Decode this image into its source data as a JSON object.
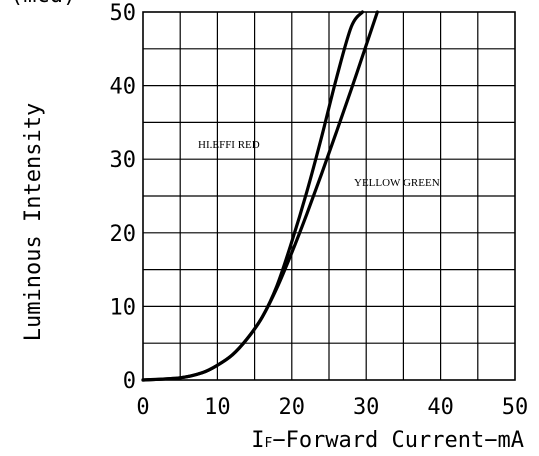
{
  "chart_data": {
    "type": "line",
    "title": "",
    "xlabel_prefix": "I",
    "xlabel_sub": "F",
    "xlabel_rest": "−Forward Current−mA",
    "ylabel": "Luminous Intensity",
    "ylabel_top_partial": "(mcd)",
    "xlim": [
      0,
      50
    ],
    "ylim": [
      0,
      50
    ],
    "xticks": [
      "0",
      "10",
      "20",
      "30",
      "40",
      "50"
    ],
    "yticks": [
      "0",
      "10",
      "20",
      "30",
      "40",
      "50"
    ],
    "grid": true,
    "annotations": [
      "HI.EFFI RED",
      "YELLOW GREEN"
    ],
    "series": [
      {
        "name": "HI.EFFI RED",
        "x": [
          0,
          5,
          8,
          10,
          12,
          14,
          16,
          18,
          20,
          22,
          24,
          26,
          28,
          29.5
        ],
        "y": [
          0,
          0.3,
          1.0,
          2.0,
          3.4,
          5.6,
          8.5,
          12.8,
          18.8,
          25.5,
          33.0,
          41.0,
          48.0,
          50
        ]
      },
      {
        "name": "YELLOW GREEN",
        "x": [
          0,
          5,
          8,
          10,
          12,
          14,
          16,
          18,
          20,
          22,
          24,
          26,
          28,
          30,
          31.5
        ],
        "y": [
          0,
          0.3,
          1.0,
          2.0,
          3.4,
          5.6,
          8.5,
          12.5,
          17.3,
          22.5,
          28.0,
          33.7,
          39.5,
          45.5,
          50
        ]
      }
    ]
  }
}
